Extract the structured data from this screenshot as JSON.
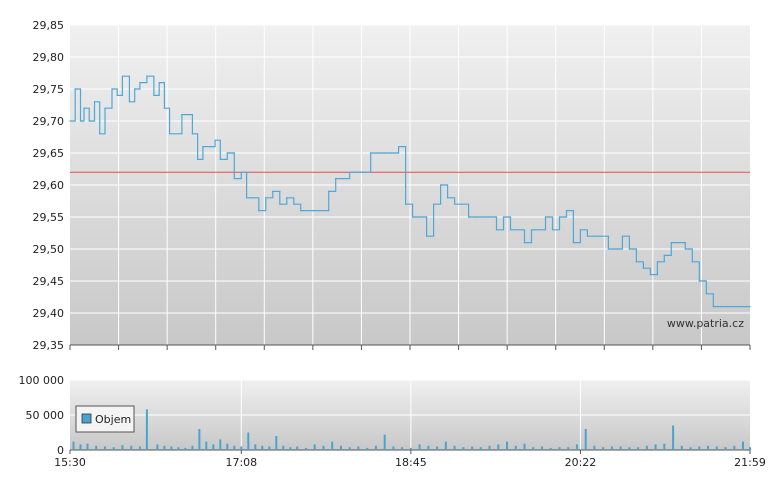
{
  "watermark": "www.patria.cz",
  "colors": {
    "price_line": "#4ea8d8",
    "reference_line": "#e05050",
    "volume_bar": "#4aa3cf",
    "grid": "#ffffff",
    "plot_bg_top": "#f0f0f0",
    "plot_bg_bottom": "#c8c8c8"
  },
  "chart_data": [
    {
      "type": "line",
      "title": "",
      "xlabel": "",
      "ylabel": "",
      "x_ticks": [
        "15:30",
        "17:08",
        "18:45",
        "20:22",
        "21:59"
      ],
      "y_ticks": [
        "29,85",
        "29,80",
        "29,75",
        "29,70",
        "29,65",
        "29,60",
        "29,55",
        "29,50",
        "29,45",
        "29,40",
        "29,35"
      ],
      "ylim": [
        29.35,
        29.85
      ],
      "xlim": [
        "15:30",
        "21:59"
      ],
      "grid": true,
      "reference_line": 29.62,
      "series": [
        {
          "x": [
            "15:30",
            "15:33",
            "15:36",
            "15:38",
            "15:41",
            "15:44",
            "15:47",
            "15:50",
            "15:54",
            "15:57",
            "16:00",
            "16:04",
            "16:07",
            "16:10",
            "16:14",
            "16:18",
            "16:21",
            "16:24",
            "16:27",
            "16:30",
            "16:34",
            "16:37",
            "16:40",
            "16:43",
            "16:46",
            "16:50",
            "16:53",
            "16:56",
            "17:00",
            "17:04",
            "17:08",
            "17:11",
            "17:14",
            "17:18",
            "17:22",
            "17:26",
            "17:30",
            "17:34",
            "17:38",
            "17:42",
            "17:46",
            "17:50",
            "17:54",
            "17:58",
            "18:02",
            "18:06",
            "18:10",
            "18:14",
            "18:18",
            "18:22",
            "18:26",
            "18:30",
            "18:34",
            "18:38",
            "18:42",
            "18:46",
            "18:50",
            "18:54",
            "18:58",
            "19:02",
            "19:06",
            "19:10",
            "19:14",
            "19:18",
            "19:22",
            "19:26",
            "19:30",
            "19:34",
            "19:38",
            "19:42",
            "19:46",
            "19:50",
            "19:54",
            "19:58",
            "20:02",
            "20:06",
            "20:10",
            "20:14",
            "20:18",
            "20:22",
            "20:26",
            "20:30",
            "20:34",
            "20:38",
            "20:42",
            "20:46",
            "20:50",
            "20:54",
            "20:58",
            "21:02",
            "21:06",
            "21:10",
            "21:14",
            "21:18",
            "21:22",
            "21:26",
            "21:30",
            "21:34",
            "21:38",
            "21:42",
            "21:46",
            "21:50",
            "21:54",
            "21:59"
          ],
          "values": [
            29.7,
            29.75,
            29.7,
            29.72,
            29.7,
            29.73,
            29.68,
            29.72,
            29.75,
            29.74,
            29.77,
            29.73,
            29.75,
            29.76,
            29.77,
            29.74,
            29.76,
            29.72,
            29.68,
            29.68,
            29.71,
            29.71,
            29.68,
            29.64,
            29.66,
            29.66,
            29.67,
            29.64,
            29.65,
            29.61,
            29.62,
            29.58,
            29.58,
            29.56,
            29.58,
            29.59,
            29.57,
            29.58,
            29.57,
            29.56,
            29.56,
            29.56,
            29.56,
            29.59,
            29.61,
            29.61,
            29.62,
            29.62,
            29.62,
            29.65,
            29.65,
            29.65,
            29.65,
            29.66,
            29.57,
            29.55,
            29.55,
            29.52,
            29.57,
            29.6,
            29.58,
            29.57,
            29.57,
            29.55,
            29.55,
            29.55,
            29.55,
            29.53,
            29.55,
            29.53,
            29.53,
            29.51,
            29.53,
            29.53,
            29.55,
            29.53,
            29.55,
            29.56,
            29.51,
            29.53,
            29.52,
            29.52,
            29.52,
            29.5,
            29.5,
            29.52,
            29.5,
            29.48,
            29.47,
            29.46,
            29.48,
            29.49,
            29.51,
            29.51,
            29.5,
            29.48,
            29.45,
            29.43,
            29.41,
            29.41,
            29.41,
            29.41,
            29.41,
            29.41
          ]
        }
      ]
    },
    {
      "type": "bar",
      "title": "",
      "xlabel": "",
      "ylabel": "",
      "legend": [
        "Objem"
      ],
      "legend_position": "bottom-left",
      "x_ticks": [
        "15:30",
        "17:08",
        "18:45",
        "20:22",
        "21:59"
      ],
      "y_ticks": [
        "100 000",
        "50 000",
        "0"
      ],
      "ylim": [
        0,
        100000
      ],
      "grid": true,
      "series": [
        {
          "name": "Objem",
          "x": [
            "15:32",
            "15:36",
            "15:40",
            "15:45",
            "15:50",
            "15:55",
            "16:00",
            "16:05",
            "16:10",
            "16:14",
            "16:20",
            "16:24",
            "16:28",
            "16:32",
            "16:36",
            "16:40",
            "16:44",
            "16:48",
            "16:52",
            "16:56",
            "17:00",
            "17:04",
            "17:08",
            "17:12",
            "17:16",
            "17:20",
            "17:24",
            "17:28",
            "17:32",
            "17:36",
            "17:40",
            "17:45",
            "17:50",
            "17:55",
            "18:00",
            "18:05",
            "18:10",
            "18:15",
            "18:20",
            "18:25",
            "18:30",
            "18:35",
            "18:40",
            "18:45",
            "18:50",
            "18:55",
            "19:00",
            "19:05",
            "19:10",
            "19:15",
            "19:20",
            "19:25",
            "19:30",
            "19:35",
            "19:40",
            "19:45",
            "19:50",
            "19:55",
            "20:00",
            "20:05",
            "20:10",
            "20:15",
            "20:20",
            "20:25",
            "20:30",
            "20:35",
            "20:40",
            "20:45",
            "20:50",
            "20:55",
            "21:00",
            "21:05",
            "21:10",
            "21:15",
            "21:20",
            "21:25",
            "21:30",
            "21:35",
            "21:40",
            "21:45",
            "21:50",
            "21:55",
            "21:59"
          ],
          "values": [
            12000,
            8000,
            9000,
            6000,
            5000,
            4000,
            7000,
            6000,
            5000,
            58000,
            8000,
            6000,
            5000,
            4000,
            3000,
            6000,
            30000,
            12000,
            8000,
            15000,
            9000,
            6000,
            5000,
            25000,
            8000,
            6000,
            5000,
            20000,
            6000,
            4000,
            5000,
            3000,
            8000,
            6000,
            12000,
            6000,
            4000,
            5000,
            3000,
            6000,
            22000,
            5000,
            4000,
            3000,
            8000,
            6000,
            5000,
            12000,
            6000,
            4000,
            5000,
            4000,
            6000,
            8000,
            12000,
            6000,
            9000,
            4000,
            5000,
            3000,
            4000,
            4000,
            8000,
            30000,
            6000,
            4000,
            5000,
            5000,
            4000,
            4000,
            6000,
            8000,
            9000,
            35000,
            6000,
            4000,
            5000,
            6000,
            5000,
            4000,
            6000,
            12000,
            4000
          ]
        }
      ]
    }
  ]
}
